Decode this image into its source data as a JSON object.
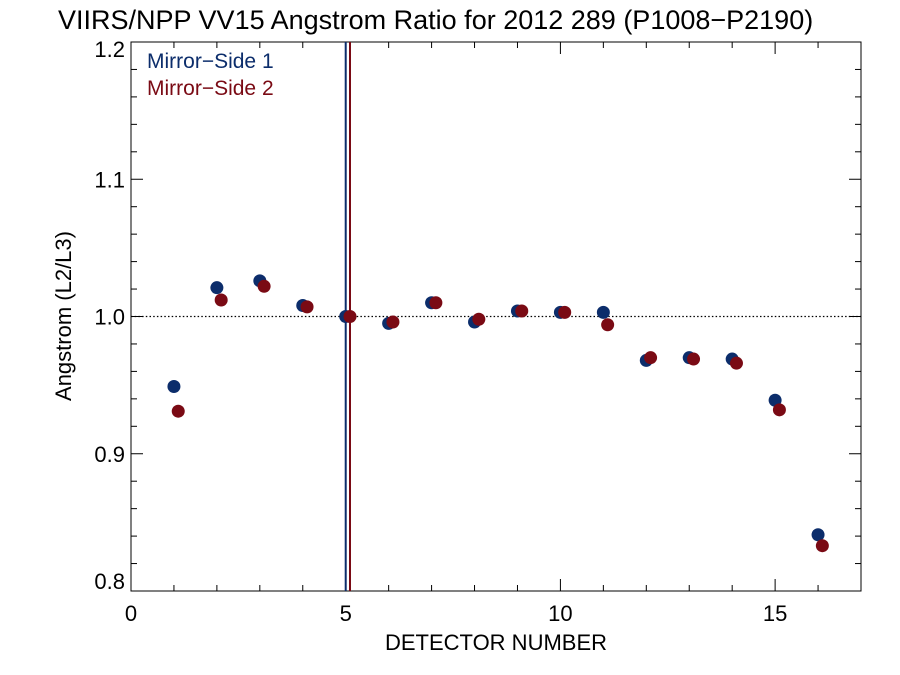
{
  "chart_data": {
    "type": "scatter",
    "title": "VIIRS/NPP VV15 Angstrom Ratio for 2012 289 (P1008−P2190)",
    "xlabel": "DETECTOR NUMBER",
    "ylabel": "Angstrom (L2/L3)",
    "xlim": [
      0,
      17
    ],
    "ylim": [
      0.8,
      1.2
    ],
    "x_major_ticks": [
      0,
      5,
      10,
      15
    ],
    "x_tick_labels": [
      "0",
      "5",
      "10",
      "15"
    ],
    "y_major_ticks": [
      0.8,
      0.9,
      1.0,
      1.1,
      1.2
    ],
    "y_tick_labels": [
      "0.8",
      "0.9",
      "1.0",
      "1.1",
      "1.2"
    ],
    "reference_line_y": 1.0,
    "vertical_markers": [
      {
        "x": 5.0,
        "color": "#0c2d6b"
      },
      {
        "x": 5.1,
        "color": "#7a0a14"
      }
    ],
    "legend_position": "top-left",
    "series": [
      {
        "name": "Mirror−Side 1",
        "color": "#0c2d6b",
        "x": [
          1,
          2,
          3,
          4,
          5,
          6,
          7,
          8,
          9,
          10,
          11,
          12,
          13,
          14,
          15,
          16
        ],
        "values": [
          0.949,
          1.021,
          1.026,
          1.008,
          1.0,
          0.995,
          1.01,
          0.996,
          1.004,
          1.003,
          1.003,
          0.968,
          0.97,
          0.969,
          0.939,
          0.841
        ]
      },
      {
        "name": "Mirror−Side 2",
        "color": "#7a0a14",
        "x": [
          1.1,
          2.1,
          3.1,
          4.1,
          5.1,
          6.1,
          7.1,
          8.1,
          9.1,
          10.1,
          11.1,
          12.1,
          13.1,
          14.1,
          15.1,
          16.1
        ],
        "values": [
          0.931,
          1.012,
          1.022,
          1.007,
          1.0,
          0.996,
          1.01,
          0.998,
          1.004,
          1.003,
          0.994,
          0.97,
          0.969,
          0.966,
          0.932,
          0.833
        ]
      }
    ]
  }
}
